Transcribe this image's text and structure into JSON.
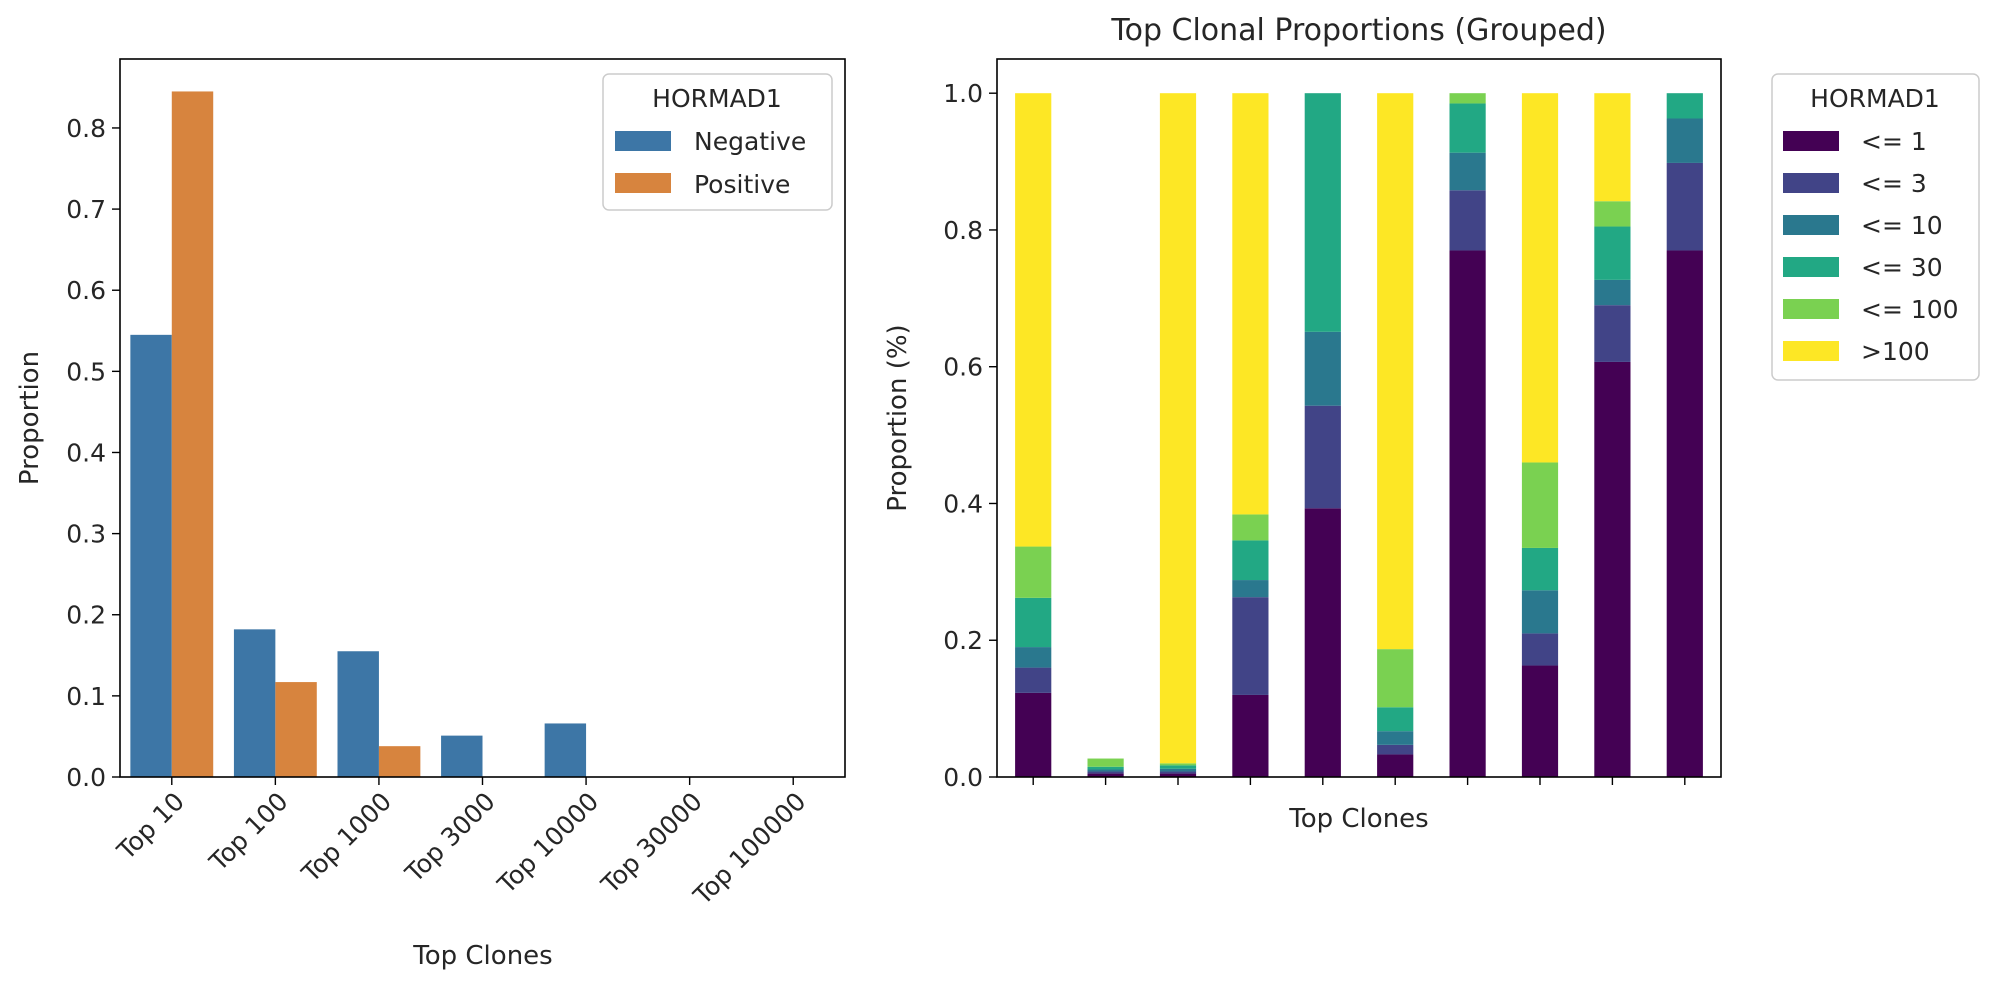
{
  "chart_data": [
    {
      "type": "bar",
      "title": "",
      "xlabel": "Top Clones",
      "ylabel": "Proportion",
      "categories": [
        "Top 10",
        "Top 100",
        "Top 1000",
        "Top 3000",
        "Top 10000",
        "Top 30000",
        "Top 100000"
      ],
      "series": [
        {
          "name": "Negative",
          "color": "#3d76a6",
          "values": [
            0.545,
            0.182,
            0.155,
            0.051,
            0.066,
            0,
            0
          ]
        },
        {
          "name": "Positive",
          "color": "#d7843e",
          "values": [
            0.845,
            0.117,
            0.038,
            0,
            0,
            0,
            0
          ]
        }
      ],
      "ylim": [
        0,
        0.885
      ],
      "yticks": [
        "0.0",
        "0.1",
        "0.2",
        "0.3",
        "0.4",
        "0.5",
        "0.6",
        "0.7",
        "0.8"
      ],
      "legend": {
        "title": "HORMAD1",
        "position": "top-right"
      },
      "grid": false
    },
    {
      "type": "bar",
      "stacked": true,
      "title": "Top Clonal Proportions (Grouped)",
      "xlabel": "Top Clones",
      "ylabel": "Proportion (%)",
      "categories": [
        "",
        "",
        "",
        "",
        "",
        "",
        "",
        "",
        "",
        ""
      ],
      "series": [
        {
          "name": "<= 1",
          "color": "#440154",
          "values": [
            0.123,
            0.005,
            0.005,
            0.12,
            0.393,
            0.033,
            0.77,
            0.163,
            0.607,
            0.77
          ]
        },
        {
          "name": "<= 3",
          "color": "#414487",
          "values": [
            0.037,
            0.003,
            0.003,
            0.143,
            0.15,
            0.014,
            0.088,
            0.047,
            0.083,
            0.128
          ]
        },
        {
          "name": "<= 10",
          "color": "#2a788e",
          "values": [
            0.03,
            0.003,
            0.004,
            0.025,
            0.108,
            0.02,
            0.055,
            0.063,
            0.037,
            0.065
          ]
        },
        {
          "name": "<= 30",
          "color": "#22a884",
          "values": [
            0.072,
            0.004,
            0.005,
            0.058,
            0.349,
            0.035,
            0.072,
            0.062,
            0.078,
            0.037
          ]
        },
        {
          "name": "<= 100",
          "color": "#7ad151",
          "values": [
            0.075,
            0.012,
            0.003,
            0.038,
            0,
            0.085,
            0.015,
            0.125,
            0.037,
            0
          ]
        },
        {
          "name": ">100",
          "color": "#fde725",
          "values": [
            0.663,
            0,
            0.98,
            0.616,
            0,
            0.813,
            0,
            0.54,
            0.158,
            0
          ]
        }
      ],
      "ylim": [
        0,
        1.05
      ],
      "yticks": [
        "0.0",
        "0.2",
        "0.4",
        "0.6",
        "0.8",
        "1.0"
      ],
      "legend": {
        "title": "HORMAD1",
        "position": "outside-right"
      },
      "grid": false
    }
  ]
}
